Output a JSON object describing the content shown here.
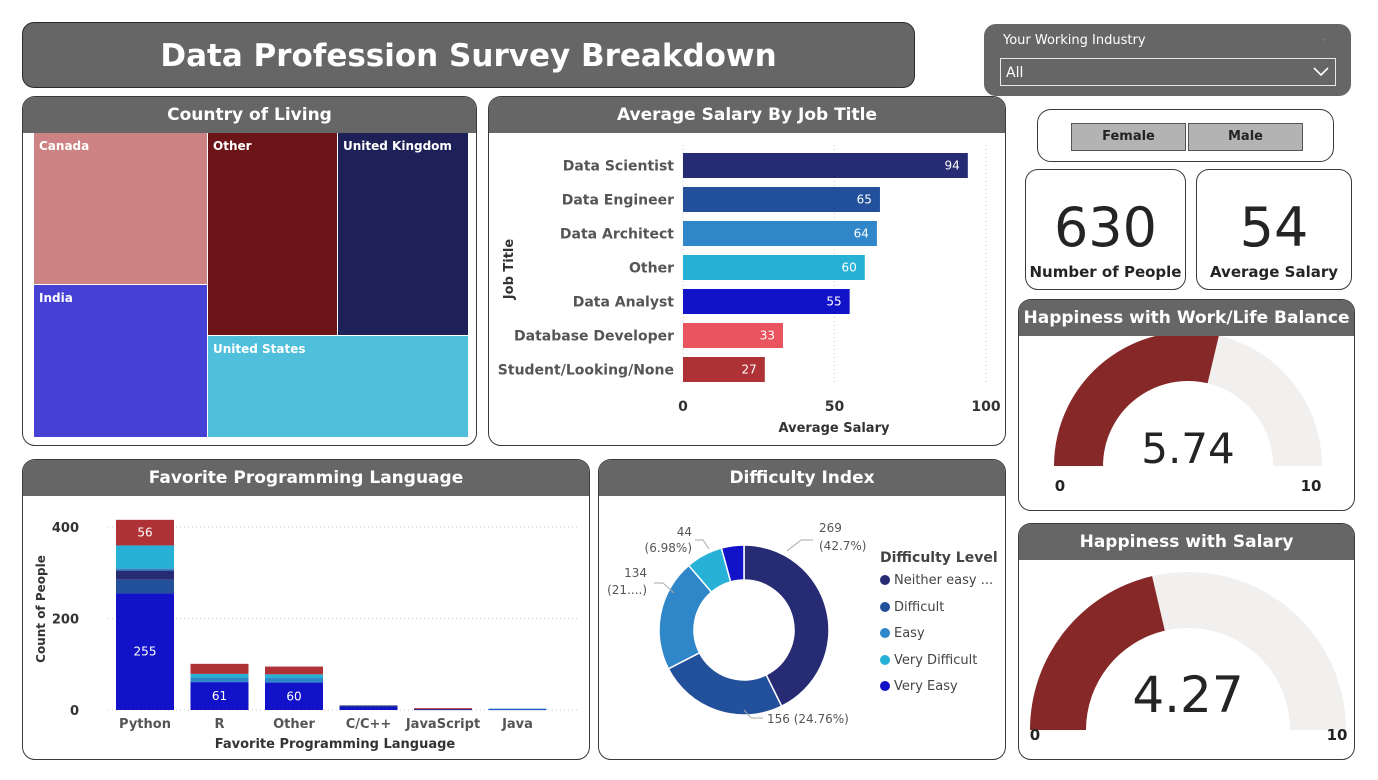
{
  "page": {
    "title": "Data Profession Survey Breakdown"
  },
  "filter": {
    "label": "Your Working Industry",
    "value": "All"
  },
  "gender_buttons": [
    "Female",
    "Male"
  ],
  "kpis": {
    "people": {
      "value": "630",
      "label": "Number of People"
    },
    "salary": {
      "value": "54",
      "label": "Average Salary"
    }
  },
  "treemap": {
    "title": "Country of Living",
    "items": [
      {
        "label": "Canada",
        "color": "#CD8283"
      },
      {
        "label": "Other",
        "color": "#6B1519"
      },
      {
        "label": "United Kingdom",
        "color": "#1E2157"
      },
      {
        "label": "India",
        "color": "#4640D5"
      },
      {
        "label": "United States",
        "color": "#50BFDC"
      }
    ]
  },
  "salary_chart": {
    "title": "Average Salary By Job Title",
    "chart_data": {
      "type": "bar",
      "orientation": "horizontal",
      "categories": [
        "Data Scientist",
        "Data Engineer",
        "Data Architect",
        "Other",
        "Data Analyst",
        "Database Developer",
        "Student/Looking/None"
      ],
      "values": [
        94,
        65,
        64,
        60,
        55,
        33,
        27
      ],
      "colors": [
        "#262B73",
        "#22509A",
        "#2F86C8",
        "#27B1D6",
        "#1212C8",
        "#E9545E",
        "#AE3236"
      ],
      "xlabel": "Average Salary",
      "ylabel": "Job Title",
      "xlim": [
        0,
        100
      ],
      "xticks": [
        "0",
        "50",
        "100"
      ]
    }
  },
  "language_chart": {
    "title": "Favorite Programming Language",
    "chart_data": {
      "type": "bar",
      "stacked": true,
      "categories": [
        "Python",
        "R",
        "Other",
        "C/C++",
        "JavaScript",
        "Java"
      ],
      "ylabel": "Count of People",
      "xlabel": "Favorite Programming Language",
      "ylim": [
        0,
        420
      ],
      "yticks": [
        "0",
        "200",
        "400"
      ],
      "series": [
        {
          "color": "#1212C8",
          "values": [
            255,
            61,
            60,
            8,
            2,
            2
          ],
          "labels": [
            "255",
            "61",
            "60",
            "",
            "",
            ""
          ]
        },
        {
          "color": "#22509A",
          "values": [
            30,
            0,
            0,
            1,
            0,
            0
          ],
          "labels": [
            "",
            "",
            "",
            "",
            "",
            ""
          ]
        },
        {
          "color": "#262B73",
          "values": [
            20,
            0,
            0,
            1,
            1,
            0
          ],
          "labels": [
            "",
            "",
            "",
            "",
            "",
            ""
          ]
        },
        {
          "color": "#2F86C8",
          "values": [
            5,
            10,
            10,
            0,
            0,
            1
          ],
          "labels": [
            "",
            "",
            "",
            "",
            "",
            ""
          ]
        },
        {
          "color": "#27B1D6",
          "values": [
            50,
            8,
            8,
            0,
            0,
            0
          ],
          "labels": [
            "",
            "",
            "",
            "",
            "",
            ""
          ]
        },
        {
          "color": "#AE3236",
          "values": [
            56,
            22,
            17,
            0,
            1,
            0
          ],
          "labels": [
            "56",
            "",
            "",
            "",
            "",
            ""
          ]
        }
      ]
    }
  },
  "difficulty_chart": {
    "title": "Difficulty Index",
    "legend_title": "Difficulty Level",
    "chart_data": {
      "type": "pie",
      "donut": true,
      "slices": [
        {
          "legend": "Neither easy ...",
          "value": 269,
          "label": "269",
          "pct": "(42.7%)",
          "color": "#262B73"
        },
        {
          "legend": "Difficult",
          "value": 156,
          "label": "156 (24.76%)",
          "pct": "",
          "color": "#22509A"
        },
        {
          "legend": "Easy",
          "value": 134,
          "label": "134",
          "pct": "(21....)",
          "color": "#2F86C8"
        },
        {
          "legend": "Very Difficult",
          "value": 44,
          "label": "44",
          "pct": "(6.98%)",
          "color": "#27B1D6"
        },
        {
          "legend": "Very Easy",
          "value": 27,
          "label": "",
          "pct": "",
          "color": "#1212C8"
        }
      ]
    }
  },
  "gauges": [
    {
      "title": "Happiness with Work/Life Balance",
      "value": 5.74,
      "value_label": "5.74",
      "min": "0",
      "max": "10",
      "range": [
        0,
        10
      ],
      "color": "#862828",
      "track": "#F1F0EF"
    },
    {
      "title": "Happiness with Salary",
      "value": 4.27,
      "value_label": "4.27",
      "min": "0",
      "max": "10",
      "range": [
        0,
        10
      ],
      "color": "#862828",
      "track": "#F1F0EF"
    }
  ]
}
